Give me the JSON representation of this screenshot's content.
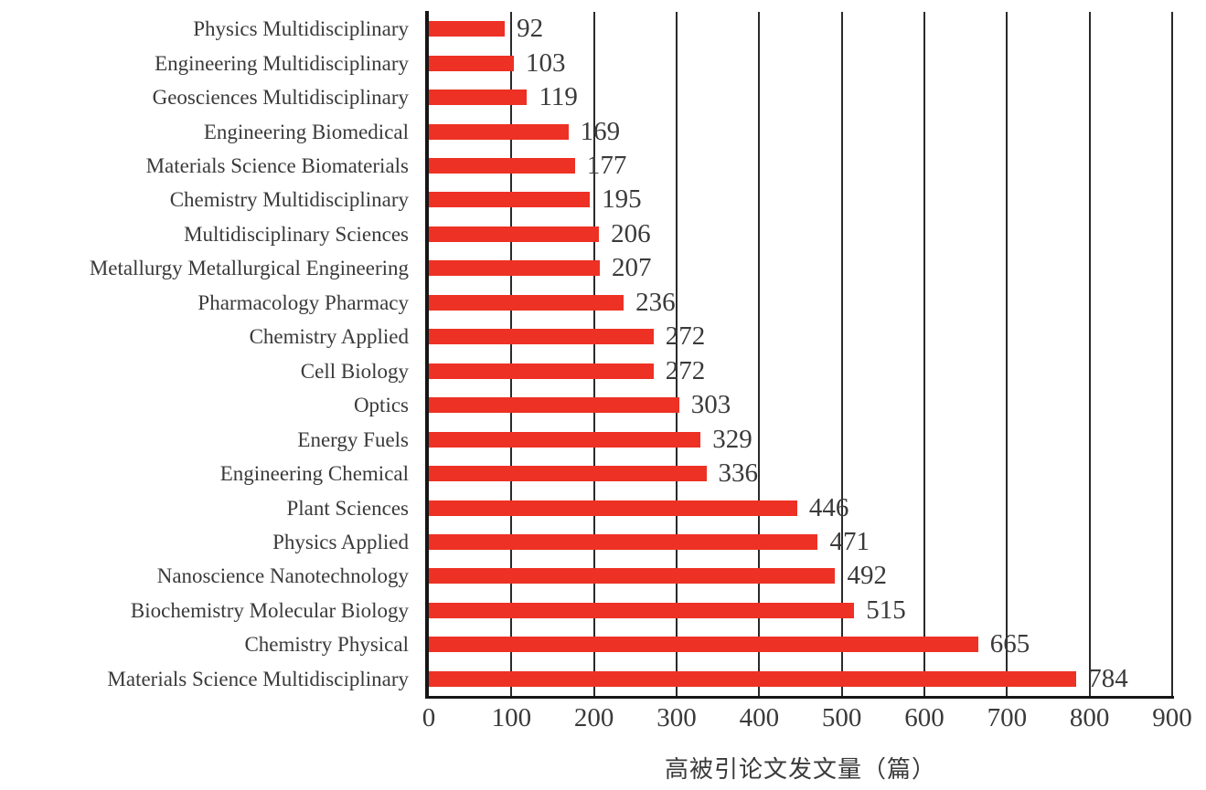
{
  "chart_data": {
    "type": "bar",
    "orientation": "horizontal",
    "title": "",
    "xlabel": "高被引论文发文量（篇）",
    "ylabel": "",
    "xlim": [
      0,
      900
    ],
    "x_ticks": [
      0,
      100,
      200,
      300,
      400,
      500,
      600,
      700,
      800,
      900
    ],
    "grid": true,
    "categories": [
      "Physics Multidisciplinary",
      "Engineering Multidisciplinary",
      "Geosciences Multidisciplinary",
      "Engineering Biomedical",
      "Materials Science Biomaterials",
      "Chemistry Multidisciplinary",
      "Multidisciplinary Sciences",
      "Metallurgy Metallurgical Engineering",
      "Pharmacology Pharmacy",
      "Chemistry Applied",
      "Cell Biology",
      "Optics",
      "Energy Fuels",
      "Engineering Chemical",
      "Plant Sciences",
      "Physics Applied",
      "Nanoscience Nanotechnology",
      "Biochemistry Molecular Biology",
      "Chemistry Physical",
      "Materials Science Multidisciplinary"
    ],
    "values": [
      92,
      103,
      119,
      169,
      177,
      195,
      206,
      207,
      236,
      272,
      272,
      303,
      329,
      336,
      446,
      471,
      492,
      515,
      665,
      784
    ]
  },
  "colors": {
    "bar": "#ED3124",
    "axis": "#161616",
    "gridline": "#2a2a2a",
    "text": "#3a3a3a",
    "background": "#ffffff"
  }
}
